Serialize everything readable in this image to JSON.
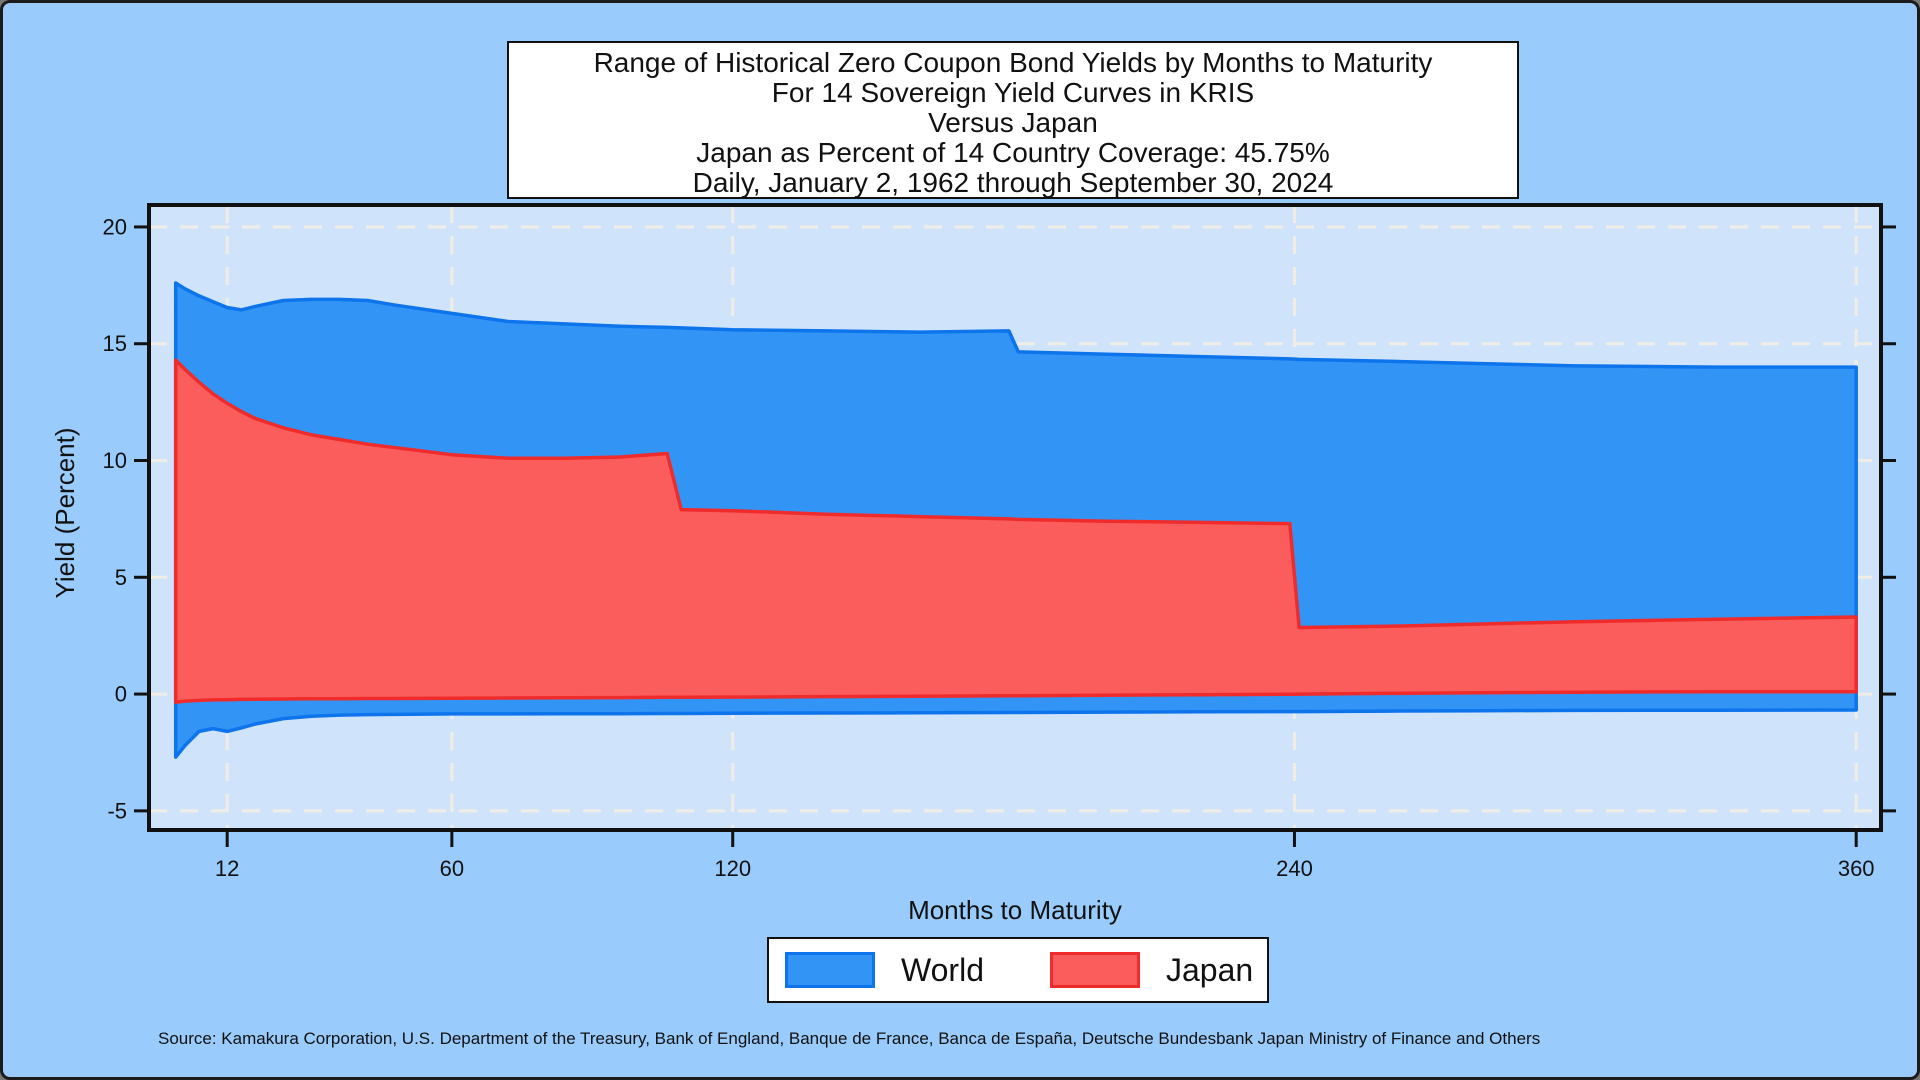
{
  "title": {
    "lines": [
      "Range of Historical Zero Coupon Bond Yields by Months to Maturity",
      "For 14 Sovereign Yield Curves in KRIS",
      "Versus Japan",
      "Japan as Percent of 14 Country Coverage: 45.75%",
      "Daily, January 2, 1962 through September 30, 2024"
    ]
  },
  "source_note": "Source: Kamakura Corporation, U.S. Department of the Treasury, Bank of England, Banque de France, Banca de España, Deutsche Bundesbank Japan Ministry of Finance and Others",
  "colors": {
    "page_background": "#99ccfc",
    "plot_background": "#cfe4fa",
    "gridline": "#f0ede6",
    "axis_and_text": "#111111",
    "world_fill": "#3295f6",
    "world_line": "#0d74ec",
    "japan_fill": "#fb5c5c",
    "japan_line": "#ef2b2b",
    "box_background": "#ffffff"
  },
  "legend": {
    "items": [
      {
        "label": "World"
      },
      {
        "label": "Japan"
      }
    ]
  },
  "chart_data": {
    "type": "area",
    "title": "Range of Historical Zero Coupon Bond Yields by Months to Maturity",
    "xlabel": "Months to Maturity",
    "ylabel": "Yield (Percent)",
    "x": [
      1,
      3,
      6,
      9,
      12,
      15,
      18,
      24,
      30,
      36,
      42,
      48,
      60,
      72,
      84,
      96,
      106,
      109,
      120,
      140,
      160,
      179,
      181,
      200,
      220,
      239,
      241,
      260,
      280,
      300,
      330,
      360
    ],
    "series": [
      {
        "name": "World",
        "kind": "band",
        "fill": "#3295f6",
        "stroke": "#0d74ec",
        "upper": [
          17.6,
          17.35,
          17.05,
          16.8,
          16.55,
          16.45,
          16.6,
          16.85,
          16.9,
          16.9,
          16.85,
          16.65,
          16.3,
          15.95,
          15.85,
          15.75,
          15.7,
          15.68,
          15.6,
          15.55,
          15.5,
          15.55,
          14.65,
          14.55,
          14.45,
          14.35,
          14.33,
          14.25,
          14.15,
          14.05,
          14.0,
          14.0
        ],
        "lower": [
          -2.7,
          -2.2,
          -1.6,
          -1.48,
          -1.6,
          -1.45,
          -1.28,
          -1.05,
          -0.95,
          -0.9,
          -0.88,
          -0.87,
          -0.85,
          -0.85,
          -0.84,
          -0.84,
          -0.83,
          -0.83,
          -0.82,
          -0.81,
          -0.8,
          -0.79,
          -0.79,
          -0.77,
          -0.76,
          -0.75,
          -0.75,
          -0.73,
          -0.71,
          -0.7,
          -0.69,
          -0.68
        ]
      },
      {
        "name": "Japan",
        "kind": "band",
        "fill": "#fb5c5c",
        "stroke": "#ef2b2b",
        "upper": [
          14.3,
          13.9,
          13.35,
          12.85,
          12.45,
          12.1,
          11.8,
          11.4,
          11.1,
          10.9,
          10.7,
          10.55,
          10.25,
          10.1,
          10.1,
          10.15,
          10.3,
          7.9,
          7.85,
          7.7,
          7.6,
          7.5,
          7.48,
          7.4,
          7.35,
          7.3,
          2.85,
          2.9,
          3.0,
          3.1,
          3.2,
          3.3
        ],
        "lower": [
          -0.35,
          -0.3,
          -0.27,
          -0.25,
          -0.24,
          -0.23,
          -0.22,
          -0.21,
          -0.2,
          -0.2,
          -0.19,
          -0.19,
          -0.18,
          -0.17,
          -0.16,
          -0.15,
          -0.14,
          -0.14,
          -0.13,
          -0.11,
          -0.09,
          -0.07,
          -0.07,
          -0.05,
          -0.03,
          -0.01,
          0.0,
          0.03,
          0.06,
          0.08,
          0.1,
          0.1
        ]
      }
    ],
    "x_ticks": [
      12,
      60,
      120,
      240,
      360
    ],
    "y_ticks": [
      20,
      15,
      10,
      5,
      0,
      -5
    ],
    "x_range": [
      -4.7,
      365.3
    ],
    "y_range": [
      -5.82,
      20.94
    ],
    "grid": "dashed",
    "legend_position": "bottom"
  }
}
